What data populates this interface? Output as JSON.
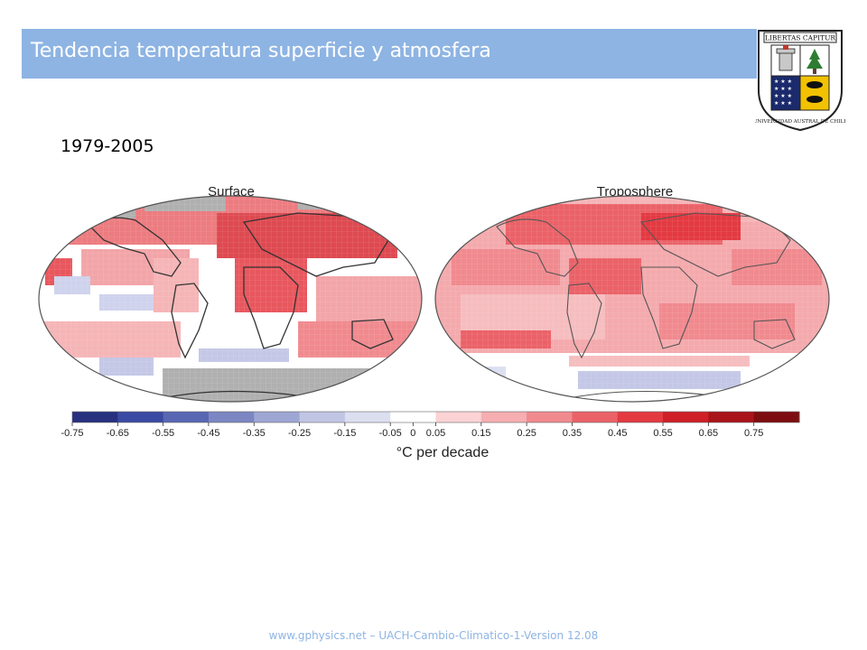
{
  "slide": {
    "title": "Tendencia temperatura superficie y atmosfera",
    "period": "1979-2005",
    "footer": "www.gphysics.net – UACH-Cambio-Climatico-1-Version 12.08"
  },
  "crest": {
    "motto": "LIBERTAS CAPITUR",
    "university": "UNIVERSIDAD AUSTRAL DE CHILE"
  },
  "figure": {
    "maps": [
      {
        "title": "Surface"
      },
      {
        "title": "Troposphere"
      }
    ],
    "colorbar": {
      "unit_label": "°C per decade",
      "ticks": [
        "-0.75",
        "-0.65",
        "-0.55",
        "-0.45",
        "-0.35",
        "-0.25",
        "-0.15",
        "-0.05",
        "0",
        "0.05",
        "0.15",
        "0.25",
        "0.35",
        "0.45",
        "0.55",
        "0.65",
        "0.75"
      ],
      "colors": [
        "#28317f",
        "#3a4aa2",
        "#5866b3",
        "#7b86c3",
        "#9ea6d4",
        "#c0c5e3",
        "#dcdff0",
        "#ffffff",
        "#fbd3d5",
        "#f6aeb1",
        "#f08a8f",
        "#ea6268",
        "#e33a42",
        "#cf1f28",
        "#a81419",
        "#7d0d10"
      ]
    },
    "colors": {
      "land_outline": "#333333",
      "no_data": "#b0b0b0",
      "warming": "#e8545b",
      "light_warming": "#f5b5b7",
      "cooling": "#b9bde0"
    }
  }
}
